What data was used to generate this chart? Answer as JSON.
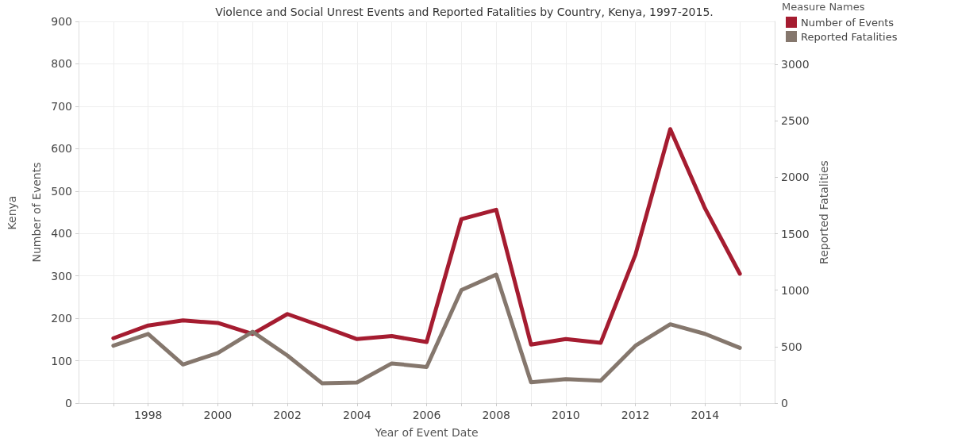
{
  "chart_data": {
    "type": "line",
    "title": "Violence and Social Unrest Events and Reported Fatalities by Country, Kenya, 1997-2015.",
    "xlabel": "Year of Event Date",
    "ylabel": "Number of Events",
    "y2label": "Reported Fatalities",
    "legend_title": "Measure Names",
    "annotations": [
      "Kenya"
    ],
    "x": [
      1997,
      1998,
      1999,
      2000,
      2001,
      2002,
      2003,
      2004,
      2005,
      2006,
      2007,
      2008,
      2009,
      2010,
      2011,
      2012,
      2013,
      2014,
      2015
    ],
    "series": [
      {
        "name": "Number of Events",
        "color": "#a51c30",
        "values": [
          153,
          183,
          195,
          189,
          163,
          210,
          181,
          151,
          158,
          144,
          434,
          456,
          138,
          151,
          142,
          350,
          646,
          459,
          305
        ]
      },
      {
        "name": "Reported Fatalities",
        "color": "#85776d",
        "axis": "y2",
        "values": [
          508,
          613,
          342,
          444,
          632,
          422,
          175,
          183,
          352,
          320,
          1001,
          1138,
          184,
          212,
          198,
          508,
          698,
          613,
          489
        ]
      }
    ],
    "xlim": [
      1996,
      2016
    ],
    "xticks": [
      {
        "value": 1997,
        "label": null
      },
      1998,
      {
        "value": 1999,
        "label": null
      },
      2000,
      {
        "value": 2001,
        "label": null
      },
      2002,
      {
        "value": 2003,
        "label": null
      },
      2004,
      {
        "value": 2005,
        "label": null
      },
      2006,
      {
        "value": 2007,
        "label": null
      },
      2008,
      {
        "value": 2009,
        "label": null
      },
      2010,
      {
        "value": 2011,
        "label": null
      },
      2012,
      {
        "value": 2013,
        "label": null
      },
      2014,
      {
        "value": 2015,
        "label": null
      }
    ],
    "ylim": [
      0,
      900
    ],
    "yticks": [
      0,
      100,
      200,
      300,
      400,
      500,
      600,
      700,
      800,
      900
    ],
    "y2lim": [
      0,
      3380
    ],
    "y2ticks": [
      0,
      500,
      1000,
      1500,
      2000,
      2500,
      3000
    ],
    "grid": true,
    "legend": "top right",
    "marker": "none",
    "line_style": "solid"
  }
}
